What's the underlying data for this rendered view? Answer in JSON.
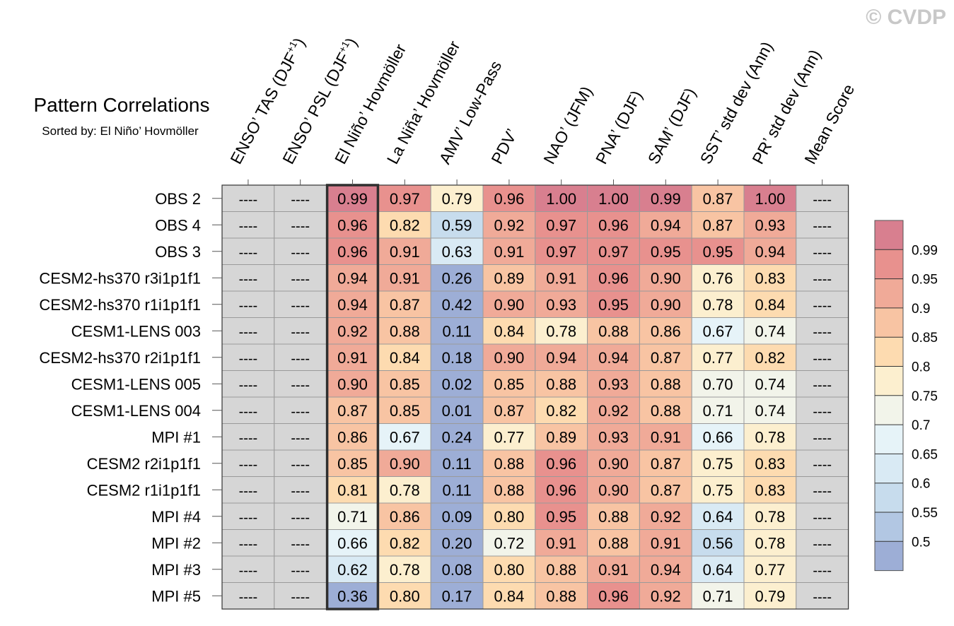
{
  "copyright": "© CVDP",
  "chart_data": {
    "type": "heatmap",
    "title": "Pattern Correlations",
    "subtitle": "Sorted by: El Niño’ Hovmöller",
    "highlight_column": 2,
    "columns": [
      {
        "base": "ENSO’ TAS (DJF",
        "sup": "+1",
        "tail": ")"
      },
      {
        "base": "ENSO’ PSL (DJF",
        "sup": "+1",
        "tail": ")"
      },
      {
        "base": "El Niño’ Hovmöller"
      },
      {
        "base": "La Niña’ Hovmöller"
      },
      {
        "base": "AMV’ Low-Pass"
      },
      {
        "base": "PDV’"
      },
      {
        "base": "NAO’ (JFM)"
      },
      {
        "base": "PNA’ (DJF)"
      },
      {
        "base": "SAM’ (DJF)"
      },
      {
        "base": "SST’ std dev (Ann)"
      },
      {
        "base": "PR’ std dev (Ann)"
      },
      {
        "base": "Mean Score"
      }
    ],
    "missing_label": "----",
    "rows": [
      {
        "label": "OBS 2",
        "values": [
          null,
          null,
          0.99,
          0.97,
          0.79,
          0.96,
          1.0,
          1.0,
          0.99,
          0.87,
          1.0,
          null
        ]
      },
      {
        "label": "OBS 4",
        "values": [
          null,
          null,
          0.96,
          0.82,
          0.59,
          0.92,
          0.97,
          0.96,
          0.94,
          0.87,
          0.93,
          null
        ]
      },
      {
        "label": "OBS 3",
        "values": [
          null,
          null,
          0.96,
          0.91,
          0.63,
          0.91,
          0.97,
          0.97,
          0.95,
          0.95,
          0.94,
          null
        ]
      },
      {
        "label": "CESM2-hs370 r3i1p1f1",
        "values": [
          null,
          null,
          0.94,
          0.91,
          0.26,
          0.89,
          0.91,
          0.96,
          0.9,
          0.76,
          0.83,
          null
        ]
      },
      {
        "label": "CESM2-hs370 r1i1p1f1",
        "values": [
          null,
          null,
          0.94,
          0.87,
          0.42,
          0.9,
          0.93,
          0.95,
          0.9,
          0.78,
          0.84,
          null
        ]
      },
      {
        "label": "CESM1-LENS 003",
        "values": [
          null,
          null,
          0.92,
          0.88,
          0.11,
          0.84,
          0.78,
          0.88,
          0.86,
          0.67,
          0.74,
          null
        ]
      },
      {
        "label": "CESM2-hs370 r2i1p1f1",
        "values": [
          null,
          null,
          0.91,
          0.84,
          0.18,
          0.9,
          0.94,
          0.94,
          0.87,
          0.77,
          0.82,
          null
        ]
      },
      {
        "label": "CESM1-LENS 005",
        "values": [
          null,
          null,
          0.9,
          0.85,
          0.02,
          0.85,
          0.88,
          0.93,
          0.88,
          0.7,
          0.74,
          null
        ]
      },
      {
        "label": "CESM1-LENS 004",
        "values": [
          null,
          null,
          0.87,
          0.85,
          0.01,
          0.87,
          0.82,
          0.92,
          0.88,
          0.71,
          0.74,
          null
        ]
      },
      {
        "label": "MPI #1",
        "values": [
          null,
          null,
          0.86,
          0.67,
          0.24,
          0.77,
          0.89,
          0.93,
          0.91,
          0.66,
          0.78,
          null
        ]
      },
      {
        "label": "CESM2 r2i1p1f1",
        "values": [
          null,
          null,
          0.85,
          0.9,
          0.11,
          0.88,
          0.96,
          0.9,
          0.87,
          0.75,
          0.83,
          null
        ]
      },
      {
        "label": "CESM2 r1i1p1f1",
        "values": [
          null,
          null,
          0.81,
          0.78,
          0.11,
          0.88,
          0.96,
          0.9,
          0.87,
          0.75,
          0.83,
          null
        ]
      },
      {
        "label": "MPI #4",
        "values": [
          null,
          null,
          0.71,
          0.86,
          0.09,
          0.8,
          0.95,
          0.88,
          0.92,
          0.64,
          0.78,
          null
        ]
      },
      {
        "label": "MPI #2",
        "values": [
          null,
          null,
          0.66,
          0.82,
          0.2,
          0.72,
          0.91,
          0.88,
          0.91,
          0.56,
          0.78,
          null
        ]
      },
      {
        "label": "MPI #3",
        "values": [
          null,
          null,
          0.62,
          0.78,
          0.08,
          0.8,
          0.88,
          0.91,
          0.94,
          0.64,
          0.77,
          null
        ]
      },
      {
        "label": "MPI #5",
        "values": [
          null,
          null,
          0.36,
          0.8,
          0.17,
          0.84,
          0.88,
          0.96,
          0.92,
          0.71,
          0.79,
          null
        ]
      }
    ],
    "colorbar": {
      "thresholds": [
        0.5,
        0.55,
        0.6,
        0.65,
        0.7,
        0.75,
        0.8,
        0.85,
        0.9,
        0.95,
        0.99
      ],
      "labels": [
        "0.99",
        "0.95",
        "0.9",
        "0.85",
        "0.8",
        "0.75",
        "0.7",
        "0.65",
        "0.6",
        "0.55",
        "0.5"
      ],
      "colors": [
        "#9daed6",
        "#b2c7e3",
        "#c7dced",
        "#d9eaf4",
        "#e6f3f8",
        "#f2f4ea",
        "#fcefcf",
        "#fddbb0",
        "#f8c4a3",
        "#f0aa98",
        "#e8918e",
        "#d87f8f"
      ]
    },
    "missing_color": "#d6d6d6"
  }
}
